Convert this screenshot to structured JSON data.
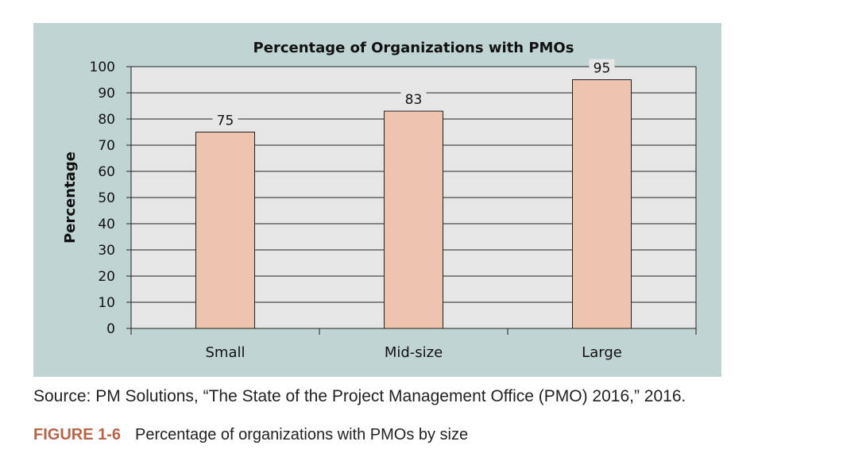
{
  "chart_data": {
    "type": "bar",
    "title": "Percentage of Organizations with PMOs",
    "ylabel": "Percentage",
    "xlabel": "",
    "categories": [
      "Small",
      "Mid-size",
      "Large"
    ],
    "values": [
      75,
      83,
      95
    ],
    "data_labels": [
      "75",
      "83",
      "95"
    ],
    "ylim": [
      0,
      100
    ],
    "yticks": [
      0,
      10,
      20,
      30,
      40,
      50,
      60,
      70,
      80,
      90,
      100
    ],
    "grid": true,
    "bar_color": "#edc4ad",
    "plot_background": "#e6e6e6",
    "panel_background": "#bfd4d3"
  },
  "source": "Source: PM Solutions, “The State of the Project Management Office (PMO) 2016,” 2016.",
  "figure": {
    "label": "FIGURE 1-6",
    "caption": "Percentage of organizations with PMOs by size",
    "label_color": "#b5654a"
  }
}
